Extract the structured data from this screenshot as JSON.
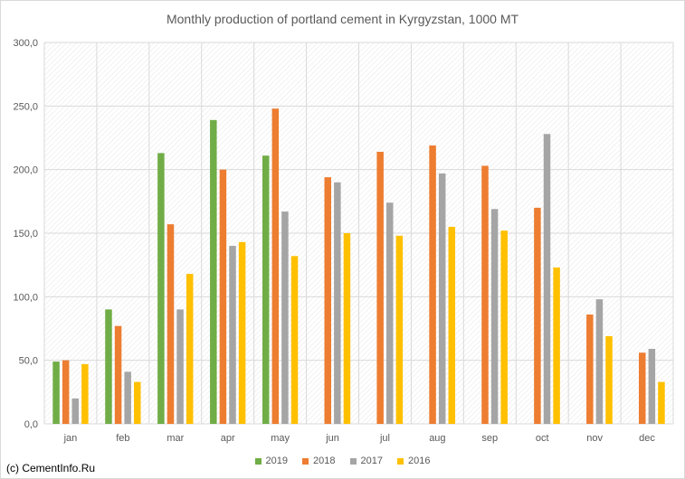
{
  "chart_data": {
    "type": "bar",
    "title": "Monthly production of portland cement in Kyrgyzstan, 1000 MT",
    "categories": [
      "jan",
      "feb",
      "mar",
      "apr",
      "may",
      "jun",
      "jul",
      "aug",
      "sep",
      "oct",
      "nov",
      "dec"
    ],
    "ylim": [
      0,
      300
    ],
    "yticks": [
      "0,0",
      "50,0",
      "100,0",
      "150,0",
      "200,0",
      "250,0",
      "300,0"
    ],
    "grid": true,
    "legend_position": "bottom",
    "series": [
      {
        "name": "2019",
        "color": "#70ad47",
        "values": [
          49,
          90,
          213,
          239,
          211,
          null,
          null,
          null,
          null,
          null,
          null,
          null
        ]
      },
      {
        "name": "2018",
        "color": "#ed7d31",
        "values": [
          50,
          77,
          157,
          200,
          248,
          194,
          214,
          219,
          203,
          170,
          86,
          56
        ]
      },
      {
        "name": "2017",
        "color": "#a5a5a5",
        "values": [
          20,
          41,
          90,
          140,
          167,
          190,
          174,
          197,
          169,
          228,
          98,
          59
        ]
      },
      {
        "name": "2016",
        "color": "#ffc000",
        "values": [
          47,
          33,
          118,
          143,
          132,
          150,
          148,
          155,
          152,
          123,
          69,
          33
        ]
      }
    ]
  },
  "footer": {
    "copyright": "(c) CementInfo.Ru"
  }
}
